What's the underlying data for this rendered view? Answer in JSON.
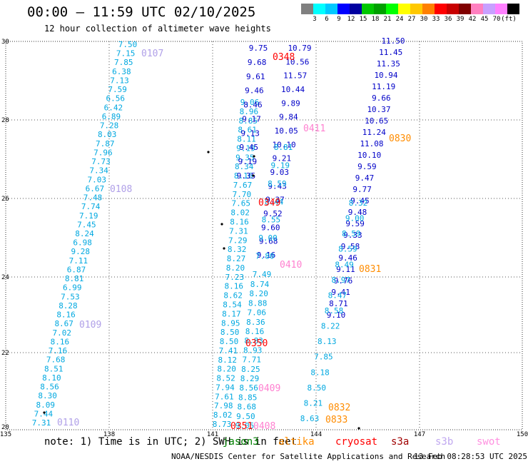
{
  "header": {
    "title": "00:00 – 11:59 UTC 02/10/2025",
    "subtitle": "12 hour collection of altimeter wave heights"
  },
  "colorbar": {
    "colors": [
      "#808080",
      "#00ffff",
      "#00c8ff",
      "#0000ff",
      "#0000a0",
      "#00c800",
      "#00a000",
      "#00ff00",
      "#ffff00",
      "#ffc800",
      "#ff8000",
      "#ff0000",
      "#c80000",
      "#800000",
      "#ff80c0",
      "#c8a0ff",
      "#ff80ff",
      "#000000"
    ],
    "labels": [
      "3",
      "6",
      "9",
      "12",
      "15",
      "18",
      "21",
      "24",
      "27",
      "30",
      "33",
      "36",
      "39",
      "42",
      "45",
      "70",
      "(ft)"
    ]
  },
  "axes": {
    "y_ticks": [
      "30",
      "28",
      "26",
      "24",
      "22",
      "20"
    ],
    "x_ticks": [
      "135",
      "138",
      "141",
      "144",
      "147",
      "150"
    ]
  },
  "passes": [
    {
      "id": "0107",
      "color": "#b0a0e8"
    },
    {
      "id": "0108",
      "color": "#b0a0e8"
    },
    {
      "id": "0109",
      "color": "#b0a0e8"
    },
    {
      "id": "0110",
      "color": "#b0a0e8"
    },
    {
      "id": "0348",
      "color": "#ff0000"
    },
    {
      "id": "0349",
      "color": "#ff0000"
    },
    {
      "id": "0350",
      "color": "#ff0000"
    },
    {
      "id": "0351",
      "color": "#ff0000"
    },
    {
      "id": "0408",
      "color": "#ff80d0"
    },
    {
      "id": "0409",
      "color": "#ff80d0"
    },
    {
      "id": "0410",
      "color": "#ff80d0"
    },
    {
      "id": "0411",
      "color": "#ff80d0"
    },
    {
      "id": "0830",
      "color": "#ff8c00"
    },
    {
      "id": "0831",
      "color": "#ff8c00"
    },
    {
      "id": "0832",
      "color": "#ff8c00"
    },
    {
      "id": "0833",
      "color": "#ff8c00"
    }
  ],
  "tracks": {
    "swot": {
      "color": "#00a8e0",
      "values": [
        "7.50",
        "7.15",
        "7.85",
        "6.38",
        "7.13",
        "7.59",
        "6.56",
        "6.42",
        "6.89",
        "7.28",
        "8.03",
        "7.87",
        "7.96",
        "7.73",
        "7.34",
        "7.03",
        "6.67",
        "7.48",
        "7.74",
        "7.19",
        "7.45",
        "8.24",
        "6.98",
        "9.28",
        "7.11",
        "6.87",
        "8.81",
        "6.99",
        "7.53",
        "8.28",
        "8.16",
        "8.67",
        "7.02",
        "8.16",
        "7.16",
        "7.68",
        "8.51",
        "8.10",
        "8.56",
        "8.30",
        "8.09",
        "7.44",
        "7.31"
      ]
    },
    "s3b_a": {
      "color": "#00a8e0",
      "values": [
        "9.06",
        "8.96",
        "8.85",
        "8.61",
        "8.11",
        "9.19",
        "9.35",
        "8.34",
        "8.16",
        "7.67",
        "7.70",
        "7.65",
        "8.02",
        "8.16",
        "7.31",
        "7.29",
        "8.32",
        "8.27",
        "8.20",
        "7.23",
        "8.16",
        "8.62",
        "8.54",
        "8.17",
        "8.95",
        "8.50",
        "8.50",
        "7.41",
        "8.12",
        "8.20",
        "8.52",
        "7.94",
        "7.61",
        "7.98",
        "8.02",
        "8.73"
      ]
    },
    "s3b_b": {
      "color": "#00a8e0",
      "values": [
        "8.74",
        "8.20",
        "8.88",
        "7.06",
        "8.36",
        "8.16",
        "8.83",
        "8.93",
        "7.71",
        "8.25",
        "8.29",
        "8.56",
        "8.85",
        "8.68",
        "9.50",
        "9.05"
      ]
    },
    "cryosat_dark": {
      "color": "#0000c8",
      "values": [
        "9.75",
        "9.68",
        "9.61",
        "9.46",
        "8.46",
        "9.17",
        "9.13",
        "9.45",
        "9.19",
        "9.35"
      ]
    },
    "altika_dark": {
      "color": "#0000c8",
      "values": [
        "10.79",
        "10.56",
        "11.57",
        "10.44",
        "9.89",
        "9.84",
        "10.05",
        "10.10",
        "9.21",
        "9.03",
        "9.43",
        "9.37",
        "9.52",
        "9.60",
        "9.68",
        "9.16"
      ]
    },
    "altika_light": {
      "color": "#00a8e0",
      "values": [
        "8.81",
        "9.19",
        "8.59",
        "8.44",
        "8.55",
        "9.00",
        "7.80",
        "7.49"
      ]
    },
    "s3a_dark": {
      "color": "#0000c8",
      "values": [
        "11.50",
        "11.45",
        "11.35",
        "10.94",
        "11.19",
        "9.66",
        "10.37",
        "10.65",
        "11.24",
        "11.08",
        "10.10",
        "9.59",
        "9.47",
        "9.77",
        "9.45",
        "9.48",
        "9.59",
        "9.33",
        "9.58",
        "9.46",
        "9.11",
        "9.76",
        "9.41",
        "8.71",
        "9.10"
      ]
    },
    "s3a_light": {
      "color": "#00a8e0",
      "values": [
        "8.32",
        "9.00",
        "8.59",
        "8.59",
        "8.49",
        "8.97",
        "8.47",
        "8.58",
        "8.22",
        "8.13",
        "7.85",
        "8.18",
        "8.50",
        "8.21",
        "8.63"
      ]
    }
  },
  "legend": {
    "note": "note: 1) Time is in UTC; 2) SWH is in feet",
    "items": [
      {
        "name": "jason3",
        "color": "#008000"
      },
      {
        "name": "altika",
        "color": "#ff8c00"
      },
      {
        "name": "cryosat",
        "color": "#ff0000"
      },
      {
        "name": "s3a",
        "color": "#a00000"
      },
      {
        "name": "s3b",
        "color": "#c0a8f0"
      },
      {
        "name": "swot",
        "color": "#ff90e0"
      }
    ]
  },
  "footer": {
    "org": "NOAA/NESDIS Center for Satellite Applications and Research",
    "time": "13 Feb 08:28:53 UTC 2025"
  }
}
